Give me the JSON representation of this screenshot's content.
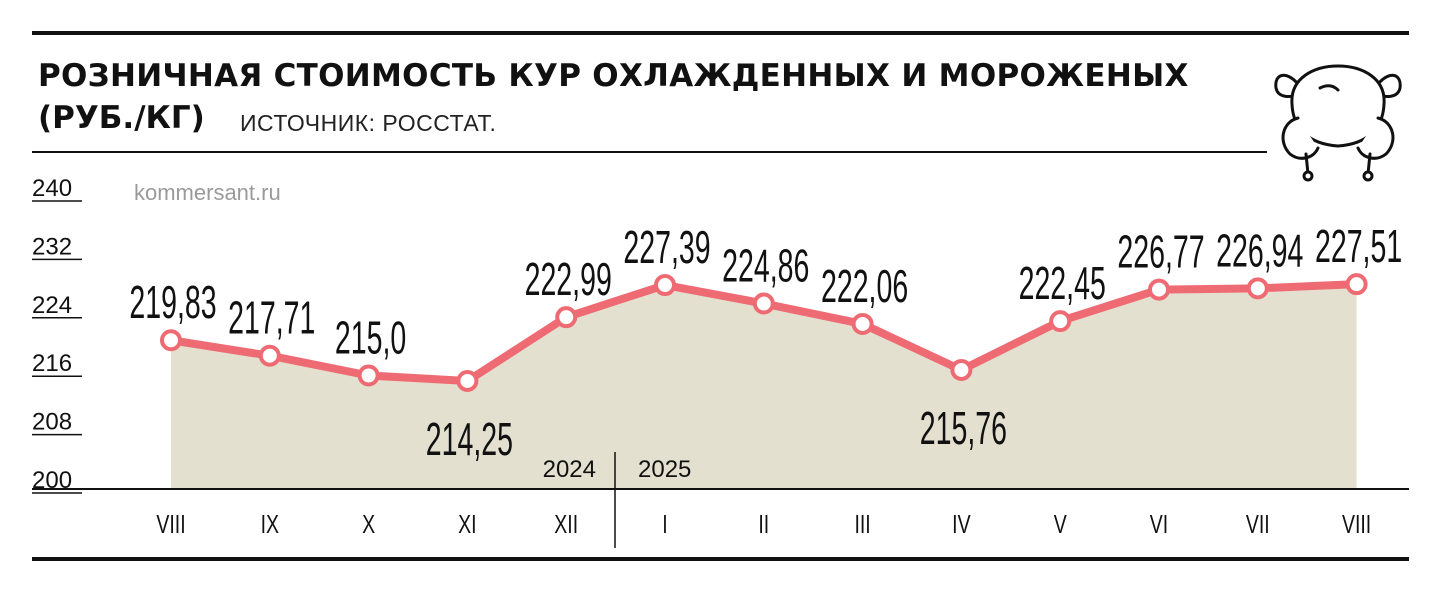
{
  "header": {
    "title_line1": "РОЗНИЧНАЯ СТОИМОСТЬ КУР ОХЛАЖДЕННЫХ И МОРОЖЕНЫХ",
    "title_line2": "(РУБ./КГ)",
    "source": "ИСТОЧНИК: РОССТАТ."
  },
  "watermark": "kommersant.ru",
  "icons": {
    "illustration": "roast-chicken-icon"
  },
  "colors": {
    "line": "#ef6b74",
    "area": "#e4e0d0",
    "marker_fill": "#ffffff",
    "text": "#111111"
  },
  "chart_data": {
    "type": "area",
    "categories": [
      "VIII",
      "IX",
      "X",
      "XI",
      "XII",
      "I",
      "II",
      "III",
      "IV",
      "V",
      "VI",
      "VII",
      "VIII"
    ],
    "series": [
      {
        "values": [
          219.83,
          217.71,
          215.0,
          214.25,
          222.99,
          227.39,
          224.86,
          222.06,
          215.76,
          222.45,
          226.77,
          226.94,
          227.51
        ],
        "labels": [
          "219,83",
          "217,71",
          "215,0",
          "214,25",
          "222,99",
          "227,39",
          "224,86",
          "222,06",
          "215,76",
          "222,45",
          "226,77",
          "226,94",
          "227,51"
        ]
      }
    ],
    "ylim": [
      200,
      240
    ],
    "yticks": [
      200,
      208,
      216,
      224,
      232,
      240
    ],
    "ytick_labels": [
      "200",
      "208",
      "216",
      "224",
      "232",
      "240"
    ],
    "year_markers": [
      {
        "label": "2024",
        "after_index": 4
      },
      {
        "label": "2025",
        "before_index": 5
      }
    ],
    "grid": false,
    "legend": "none"
  }
}
